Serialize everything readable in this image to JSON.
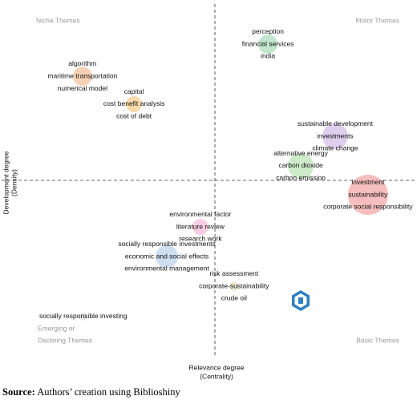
{
  "chart_data": {
    "type": "bubble",
    "quadrants": {
      "top_left": "Niche Themes",
      "top_right": "Motor Themes",
      "bottom_left": [
        "Emerging or",
        "Declining Themes"
      ],
      "bottom_right": "Basic Themes"
    },
    "x_label": [
      "Relevance degree",
      "(Centrality)"
    ],
    "y_label": [
      "Development degree",
      "(Density)"
    ],
    "xlim": [
      0,
      100
    ],
    "ylim": [
      0,
      100
    ],
    "x_divider": 50,
    "y_divider": 50,
    "series": [
      {
        "labels": [
          "perception",
          "financial services",
          "india"
        ],
        "x": 63.9,
        "y": 88.6,
        "size": 144,
        "color": "#b9e3c6"
      },
      {
        "labels": [
          "algorithm",
          "maritime transportation",
          "numerical model"
        ],
        "x": 15.3,
        "y": 79.5,
        "size": 144,
        "color": "#f6c9a8"
      },
      {
        "labels": [
          "capital",
          "cost benefit analysis",
          "cost of debt"
        ],
        "x": 28.8,
        "y": 71.6,
        "size": 100,
        "color": "#f8d39c"
      },
      {
        "labels": [
          "sustainable development",
          "investments",
          "climate change"
        ],
        "x": 81.5,
        "y": 62.5,
        "size": 256,
        "color": "#d9c6ea"
      },
      {
        "labels": [
          "alternative energy",
          "carbon dioxide",
          "carbon emission"
        ],
        "x": 72.5,
        "y": 54.1,
        "size": 256,
        "color": "#c4e6c0"
      },
      {
        "labels": [
          "investment",
          "sustainability",
          "corporate social responsibility"
        ],
        "x": 90.1,
        "y": 45.9,
        "size": 625,
        "color": "#f4b3b3"
      },
      {
        "labels": [
          "environmental factor",
          "literature review",
          "research work"
        ],
        "x": 46.2,
        "y": 36.8,
        "size": 100,
        "color": "#f5c6de"
      },
      {
        "labels": [
          "socially responsible investments",
          "economic and social effects",
          "environmental management"
        ],
        "x": 37.4,
        "y": 28.4,
        "size": 196,
        "color": "#c5d8ee"
      },
      {
        "labels": [
          "risk assessment",
          "corporate-sustainability",
          "crude oil"
        ],
        "x": 55.0,
        "y": 20.0,
        "size": 36,
        "color": "#eee6cf"
      },
      {
        "labels": [
          "socially responsible investing"
        ],
        "x": 15.5,
        "y": 11.4,
        "size": 25,
        "color": "#e6e6e6"
      }
    ]
  },
  "source": {
    "prefix": "Source:",
    "text": "Authors’ creation using Biblioshiny"
  }
}
